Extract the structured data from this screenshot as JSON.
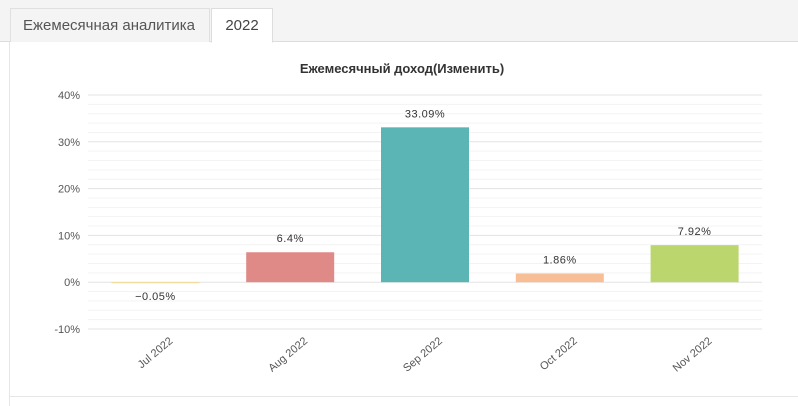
{
  "tabs": [
    {
      "label": "Ежемесячная аналитика",
      "active": false
    },
    {
      "label": "2022",
      "active": true
    }
  ],
  "chart_data": {
    "type": "bar",
    "title": "Ежемесячный доход(Изменить)",
    "categories": [
      "Jul 2022",
      "Aug 2022",
      "Sep 2022",
      "Oct 2022",
      "Nov 2022"
    ],
    "values": [
      -0.05,
      6.4,
      33.09,
      1.86,
      7.92
    ],
    "value_labels": [
      "−0.05%",
      "6.4%",
      "33.09%",
      "1.86%",
      "7.92%"
    ],
    "colors": [
      "#f7d98a",
      "#e08a87",
      "#5bb5b5",
      "#f8bf97",
      "#bcd66e"
    ],
    "yticks": [
      "40%",
      "30%",
      "20%",
      "10%",
      "0%",
      "-10%"
    ],
    "ytick_values": [
      40,
      30,
      20,
      10,
      0,
      -10
    ],
    "ylim": [
      -10,
      40
    ],
    "grid": true,
    "legend": "none"
  }
}
